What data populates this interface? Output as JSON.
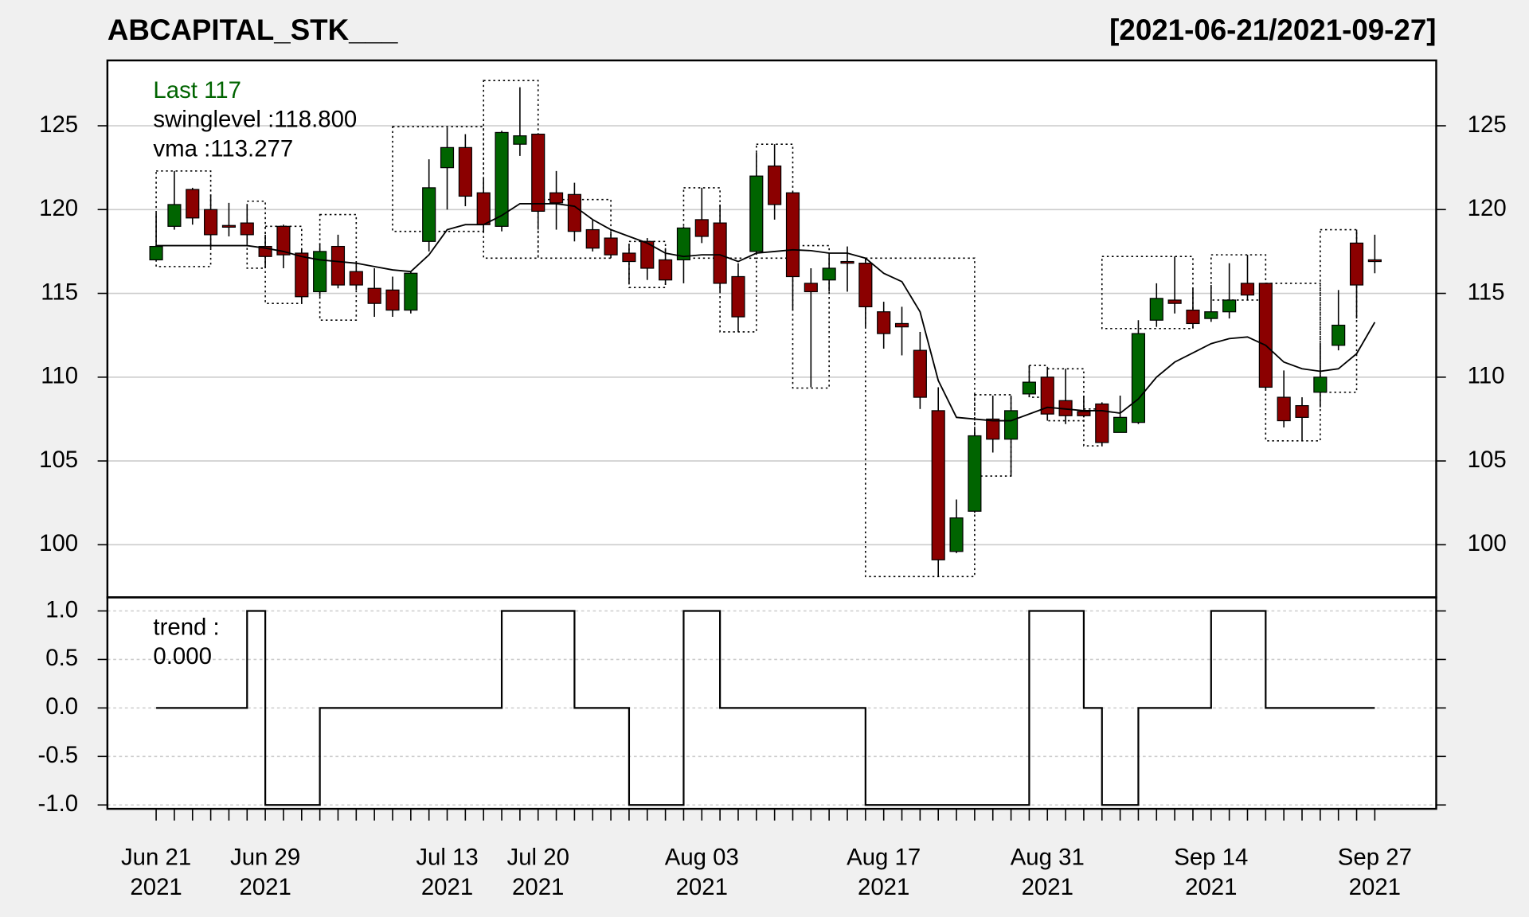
{
  "chart_data": [
    {
      "type": "candlestick",
      "title": "ABCAPITAL_STK___",
      "subtitle": "[2021-06-21/2021-09-27]",
      "annotations": [
        {
          "text": "Last 117",
          "color": "#006400"
        },
        {
          "text": "swinglevel :118.800",
          "color": "#000000"
        },
        {
          "text": "vma :113.277",
          "color": "#000000"
        }
      ],
      "categories": [
        [
          "Jun 21",
          "2021"
        ],
        null,
        null,
        null,
        null,
        null,
        [
          "Jun 29",
          "2021"
        ],
        null,
        null,
        null,
        null,
        null,
        null,
        null,
        null,
        null,
        [
          "Jul 13",
          "2021"
        ],
        null,
        null,
        null,
        null,
        [
          "Jul 20",
          "2021"
        ],
        null,
        null,
        null,
        null,
        null,
        null,
        null,
        null,
        [
          "Aug 03",
          "2021"
        ],
        null,
        null,
        null,
        null,
        null,
        null,
        null,
        null,
        null,
        [
          "Aug 17",
          "2021"
        ],
        null,
        null,
        null,
        null,
        null,
        null,
        null,
        null,
        [
          "Aug 31",
          "2021"
        ],
        null,
        null,
        null,
        null,
        null,
        null,
        null,
        null,
        [
          "Sep 14",
          "2021"
        ],
        null,
        null,
        null,
        null,
        null,
        null,
        null,
        null,
        [
          "Sep 27",
          "2021"
        ]
      ],
      "open": [
        117.0,
        119.0,
        121.2,
        120.0,
        119.05,
        119.2,
        117.8,
        119.0,
        117.4,
        115.1,
        117.8,
        116.3,
        115.3,
        115.2,
        114.0,
        118.1,
        122.5,
        123.7,
        121.0,
        119.0,
        123.9,
        124.5,
        121.0,
        120.9,
        118.8,
        118.3,
        117.4,
        118.1,
        117.0,
        117.0,
        119.4,
        119.2,
        116.0,
        117.5,
        122.6,
        121.0,
        115.6,
        115.8,
        116.9,
        116.8,
        113.9,
        113.2,
        111.6,
        108.0,
        99.6,
        102.0,
        107.5,
        106.3,
        109.0,
        110.0,
        108.6,
        107.95,
        108.4,
        106.7,
        107.3,
        113.4,
        114.6,
        114.0,
        113.5,
        113.9,
        115.6,
        115.6,
        108.8,
        108.3,
        109.1,
        111.9,
        118.0,
        117.0
      ],
      "high": [
        119.8,
        122.3,
        121.3,
        120.9,
        120.4,
        120.3,
        118.5,
        119.1,
        117.7,
        118.0,
        118.5,
        116.9,
        116.5,
        116.0,
        116.3,
        123.0,
        124.9,
        124.5,
        121.9,
        124.7,
        127.3,
        124.5,
        122.3,
        121.6,
        119.4,
        118.7,
        117.9,
        118.3,
        117.7,
        119.0,
        121.3,
        120.3,
        116.8,
        123.4,
        123.9,
        121.0,
        116.5,
        117.3,
        117.8,
        117.1,
        114.5,
        114.2,
        112.7,
        109.4,
        102.7,
        106.9,
        108.9,
        108.9,
        110.7,
        110.5,
        110.5,
        108.9,
        108.5,
        108.9,
        113.4,
        115.6,
        117.2,
        115.3,
        115.5,
        116.8,
        117.3,
        115.6,
        110.4,
        108.8,
        112.0,
        115.2,
        118.8,
        118.5
      ],
      "low": [
        117.0,
        118.8,
        119.1,
        117.7,
        118.4,
        118.0,
        116.5,
        116.5,
        114.4,
        114.8,
        115.3,
        115.2,
        113.6,
        113.6,
        113.8,
        117.5,
        120.0,
        120.2,
        118.7,
        118.7,
        123.2,
        118.8,
        118.8,
        118.1,
        117.5,
        117.1,
        115.6,
        115.8,
        115.5,
        115.6,
        118.0,
        115.1,
        112.7,
        117.4,
        119.4,
        114.0,
        109.4,
        115.1,
        115.1,
        113.0,
        111.7,
        111.3,
        108.1,
        98.1,
        99.5,
        101.9,
        105.5,
        104.1,
        108.8,
        107.4,
        107.2,
        107.6,
        105.9,
        106.7,
        107.2,
        113.0,
        113.8,
        112.9,
        113.3,
        113.5,
        114.6,
        109.2,
        107.0,
        106.2,
        108.2,
        111.6,
        113.5,
        116.2
      ],
      "close": [
        117.8,
        120.3,
        119.5,
        118.5,
        118.95,
        118.5,
        117.2,
        117.3,
        114.8,
        117.5,
        115.5,
        115.5,
        114.4,
        114.0,
        116.2,
        121.3,
        123.7,
        120.8,
        119.1,
        124.6,
        124.4,
        119.9,
        120.4,
        118.7,
        117.7,
        117.3,
        116.9,
        116.5,
        115.8,
        118.9,
        118.4,
        115.6,
        113.6,
        122.0,
        120.3,
        116.0,
        115.1,
        116.5,
        116.8,
        114.2,
        112.6,
        113.0,
        108.8,
        99.1,
        101.6,
        106.5,
        106.3,
        108.0,
        109.7,
        107.8,
        107.7,
        107.7,
        106.1,
        107.6,
        112.6,
        114.7,
        114.4,
        113.2,
        113.9,
        114.6,
        114.9,
        109.4,
        107.4,
        107.6,
        110.0,
        113.1,
        115.5,
        116.9
      ],
      "vma": [
        117.85,
        117.85,
        117.85,
        117.85,
        117.85,
        117.85,
        117.7,
        117.5,
        117.2,
        117.0,
        116.9,
        116.8,
        116.6,
        116.4,
        116.3,
        117.3,
        118.8,
        119.1,
        119.1,
        119.65,
        120.35,
        120.35,
        120.35,
        120.2,
        119.4,
        118.8,
        118.4,
        118.0,
        117.4,
        117.2,
        117.3,
        117.3,
        116.9,
        117.4,
        117.5,
        117.6,
        117.55,
        117.4,
        117.4,
        117.1,
        116.2,
        115.7,
        113.9,
        109.8,
        107.6,
        107.5,
        107.4,
        107.4,
        107.8,
        108.2,
        108.1,
        108.0,
        108.0,
        107.85,
        108.7,
        110.0,
        110.9,
        111.45,
        112.0,
        112.3,
        112.4,
        111.9,
        110.9,
        110.5,
        110.35,
        110.5,
        111.4,
        113.277
      ],
      "swing_boxes": [
        {
          "from": 0,
          "to": 3,
          "high": 122.3,
          "low": 116.6
        },
        {
          "from": 5,
          "to": 6,
          "high": 120.5,
          "low": 116.5
        },
        {
          "from": 6,
          "to": 8,
          "high": 119.0,
          "low": 114.4
        },
        {
          "from": 9,
          "to": 11,
          "high": 119.7,
          "low": 113.4
        },
        {
          "from": 13,
          "to": 18,
          "high": 124.95,
          "low": 118.7
        },
        {
          "from": 18,
          "to": 21,
          "high": 127.7,
          "low": 117.1
        },
        {
          "from": 21,
          "to": 25,
          "high": 120.6,
          "low": 117.1
        },
        {
          "from": 26,
          "to": 28,
          "high": 118.1,
          "low": 115.35
        },
        {
          "from": 29,
          "to": 31,
          "high": 121.3,
          "low": 117.1
        },
        {
          "from": 31,
          "to": 33,
          "high": 117.1,
          "low": 112.7
        },
        {
          "from": 33,
          "to": 35,
          "high": 123.9,
          "low": 117.1
        },
        {
          "from": 35,
          "to": 37,
          "high": 117.85,
          "low": 109.35
        },
        {
          "from": 39,
          "to": 45,
          "high": 117.1,
          "low": 98.1
        },
        {
          "from": 45,
          "to": 47,
          "high": 108.95,
          "low": 104.1
        },
        {
          "from": 48,
          "to": 49,
          "high": 110.7,
          "low": 108.8
        },
        {
          "from": 49,
          "to": 51,
          "high": 110.5,
          "low": 107.4
        },
        {
          "from": 51,
          "to": 52,
          "high": 108.1,
          "low": 105.9
        },
        {
          "from": 52,
          "to": 57,
          "high": 117.2,
          "low": 112.9
        },
        {
          "from": 58,
          "to": 61,
          "high": 117.3,
          "low": 114.6
        },
        {
          "from": 61,
          "to": 64,
          "high": 115.6,
          "low": 106.2
        },
        {
          "from": 64,
          "to": 66,
          "high": 118.8,
          "low": 109.1
        }
      ],
      "up_color": "#006400",
      "down_color": "#8b0000",
      "line_color": "#000000",
      "ylim": [
        96.86,
        128.9
      ],
      "yticks": [
        100,
        105,
        110,
        115,
        120,
        125
      ],
      "grid": "solid"
    },
    {
      "type": "step",
      "annotations": [
        {
          "text": "trend :",
          "color": "#000000"
        },
        {
          "text": "0.000",
          "color": "#000000"
        }
      ],
      "values": [
        0,
        0,
        0,
        0,
        0,
        1,
        -1,
        -1,
        -1,
        0,
        0,
        0,
        0,
        0,
        0,
        0,
        0,
        0,
        0,
        1,
        1,
        1,
        1,
        0,
        0,
        0,
        -1,
        -1,
        -1,
        1,
        1,
        0,
        0,
        0,
        0,
        0,
        0,
        0,
        0,
        -1,
        -1,
        -1,
        -1,
        -1,
        -1,
        -1,
        -1,
        -1,
        1,
        1,
        1,
        0,
        -1,
        -1,
        0,
        0,
        0,
        0,
        1,
        1,
        1,
        0,
        0,
        0,
        0,
        0,
        0,
        0
      ],
      "color": "#000000",
      "ylim": [
        -1.04,
        1.14
      ],
      "yticks": [
        {
          "value": -1,
          "label": "-1.0"
        },
        {
          "value": -0.5,
          "label": "-0.5"
        },
        {
          "value": 0,
          "label": "0.0"
        },
        {
          "value": 0.5,
          "label": "0.5"
        },
        {
          "value": 1,
          "label": "1.0"
        }
      ],
      "grid": "dashed"
    }
  ]
}
